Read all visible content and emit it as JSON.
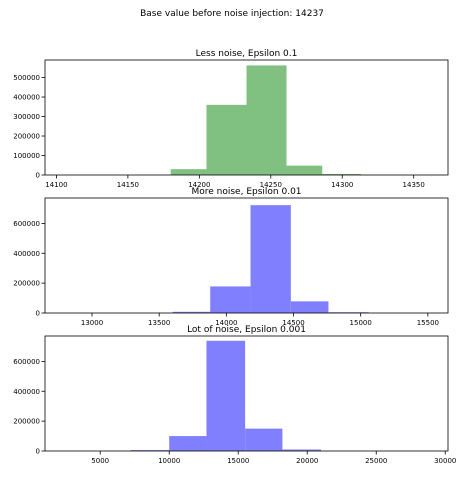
{
  "figure": {
    "suptitle": "Base value before noise injection: 14237"
  },
  "chart_data": [
    {
      "type": "bar",
      "title": "Less noise, Epsilon 0.1",
      "color": "#80c080",
      "xlim": [
        14092,
        14374
      ],
      "ylim": [
        0,
        590000
      ],
      "xticks": [
        14100,
        14150,
        14200,
        14250,
        14300,
        14350
      ],
      "yticks": [
        0,
        100000,
        200000,
        300000,
        400000,
        500000
      ],
      "bins": [
        {
          "x0": 14180,
          "x1": 14205,
          "value": 30000
        },
        {
          "x0": 14205,
          "x1": 14233,
          "value": 360000
        },
        {
          "x0": 14233,
          "x1": 14261,
          "value": 562000
        },
        {
          "x0": 14261,
          "x1": 14286,
          "value": 48000
        },
        {
          "x0": 14286,
          "x1": 14313,
          "value": 5000
        }
      ]
    },
    {
      "type": "bar",
      "title": "More noise, Epsilon 0.01",
      "color": "#8080ff",
      "xlim": [
        12650,
        15650
      ],
      "ylim": [
        0,
        770000
      ],
      "xticks": [
        13000,
        13500,
        14000,
        14500,
        15000,
        15500
      ],
      "yticks": [
        0,
        200000,
        400000,
        600000
      ],
      "bins": [
        {
          "x0": 13600,
          "x1": 13880,
          "value": 8000
        },
        {
          "x0": 13880,
          "x1": 14180,
          "value": 178000
        },
        {
          "x0": 14180,
          "x1": 14480,
          "value": 722000
        },
        {
          "x0": 14480,
          "x1": 14760,
          "value": 78000
        },
        {
          "x0": 14760,
          "x1": 15060,
          "value": 5000
        }
      ]
    },
    {
      "type": "bar",
      "title": "Lot of noise, Epsilon 0.001",
      "color": "#8080ff",
      "xlim": [
        1000,
        30200
      ],
      "ylim": [
        0,
        770000
      ],
      "xticks": [
        5000,
        10000,
        15000,
        20000,
        25000,
        30000
      ],
      "yticks": [
        0,
        200000,
        400000,
        600000
      ],
      "bins": [
        {
          "x0": 7200,
          "x1": 10000,
          "value": 6000
        },
        {
          "x0": 10000,
          "x1": 12700,
          "value": 100000
        },
        {
          "x0": 12700,
          "x1": 15500,
          "value": 738000
        },
        {
          "x0": 15500,
          "x1": 18200,
          "value": 150000
        },
        {
          "x0": 18200,
          "x1": 21000,
          "value": 10000
        }
      ]
    }
  ]
}
